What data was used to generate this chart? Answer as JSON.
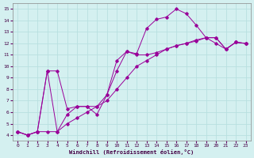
{
  "xlabel": "Windchill (Refroidissement éolien,°C)",
  "bg_color": "#d4f0f0",
  "line_color": "#990099",
  "grid_color": "#b8e0e0",
  "xlim": [
    -0.5,
    23.5
  ],
  "ylim": [
    3.5,
    15.5
  ],
  "xticks": [
    0,
    1,
    2,
    3,
    4,
    5,
    6,
    7,
    8,
    9,
    10,
    11,
    12,
    13,
    14,
    15,
    16,
    17,
    18,
    19,
    20,
    21,
    22,
    23
  ],
  "yticks": [
    4,
    5,
    6,
    7,
    8,
    9,
    10,
    11,
    12,
    13,
    14,
    15
  ],
  "series": [
    {
      "x": [
        0,
        1,
        2,
        3,
        4,
        5,
        6,
        7,
        8,
        9,
        10,
        11,
        12,
        13,
        14,
        15,
        16,
        17,
        18,
        19,
        20,
        21,
        22,
        23
      ],
      "y": [
        4.3,
        4.0,
        4.3,
        9.6,
        9.6,
        6.3,
        6.5,
        6.5,
        5.8,
        7.5,
        9.6,
        11.3,
        11.1,
        13.3,
        14.1,
        14.3,
        15.0,
        14.6,
        13.6,
        12.5,
        12.5,
        11.5,
        12.1,
        12.0
      ]
    },
    {
      "x": [
        0,
        1,
        2,
        3,
        4,
        5,
        6,
        7,
        8,
        9,
        10,
        11,
        12,
        13,
        14,
        15,
        16,
        17,
        18,
        19,
        20,
        21,
        22,
        23
      ],
      "y": [
        4.3,
        4.0,
        4.3,
        4.3,
        4.3,
        5.0,
        5.5,
        6.0,
        6.5,
        7.0,
        8.0,
        9.0,
        10.0,
        10.5,
        11.0,
        11.5,
        11.8,
        12.0,
        12.3,
        12.5,
        12.0,
        11.5,
        12.1,
        12.0
      ]
    },
    {
      "x": [
        0,
        1,
        2,
        3,
        4,
        5,
        6,
        7,
        8,
        9,
        10,
        11,
        12,
        13,
        14,
        15,
        16,
        17,
        18,
        19,
        20,
        21,
        22,
        23
      ],
      "y": [
        4.3,
        4.0,
        4.3,
        9.6,
        4.3,
        5.8,
        6.5,
        6.5,
        6.5,
        7.5,
        10.5,
        11.3,
        11.0,
        11.0,
        11.2,
        11.5,
        11.8,
        12.0,
        12.2,
        12.5,
        12.5,
        11.5,
        12.1,
        12.0
      ]
    }
  ]
}
